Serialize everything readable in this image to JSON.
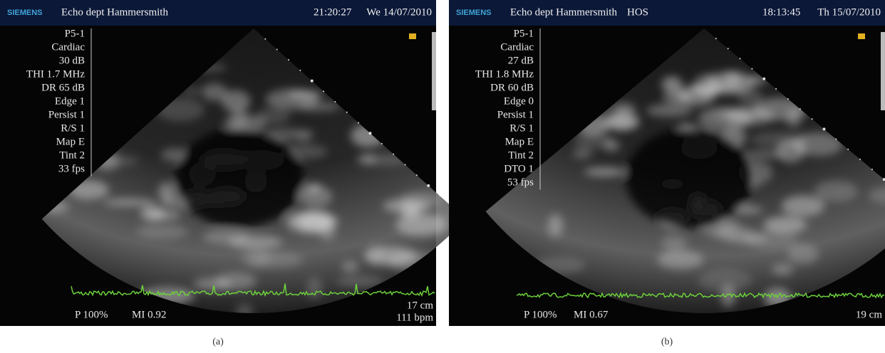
{
  "panels": [
    {
      "header": {
        "brand": "SIEMENS",
        "site": "Echo dept Hammersmith",
        "time": "21:20:27",
        "date": "We 14/07/2010"
      },
      "settings": [
        "P5-1",
        "Cardiac",
        "30 dB",
        "THI 1.7 MHz",
        "DR 65 dB",
        "Edge 1",
        "Persist 1",
        "R/S 1",
        "Map E",
        "Tint 2",
        "33 fps"
      ],
      "footer": {
        "power": "P 100%",
        "mi": "MI 0.92",
        "depth": "17 cm",
        "rate": "111 bpm"
      },
      "caption": "(a)"
    },
    {
      "header": {
        "brand": "SIEMENS",
        "site": "Echo dept Hammersmith",
        "tag": "HOS",
        "time": "18:13:45",
        "date": "Th 15/07/2010"
      },
      "settings": [
        "P5-1",
        "Cardiac",
        "27 dB",
        "THI 1.8 MHz",
        "DR 60 dB",
        "Edge 0",
        "Persist 1",
        "R/S 1",
        "Map E",
        "Tint 2",
        "DTO 1",
        "53 fps"
      ],
      "footer": {
        "power": "P 100%",
        "mi": "MI 0.67",
        "depth": "19 cm"
      },
      "caption": "(b)"
    }
  ]
}
